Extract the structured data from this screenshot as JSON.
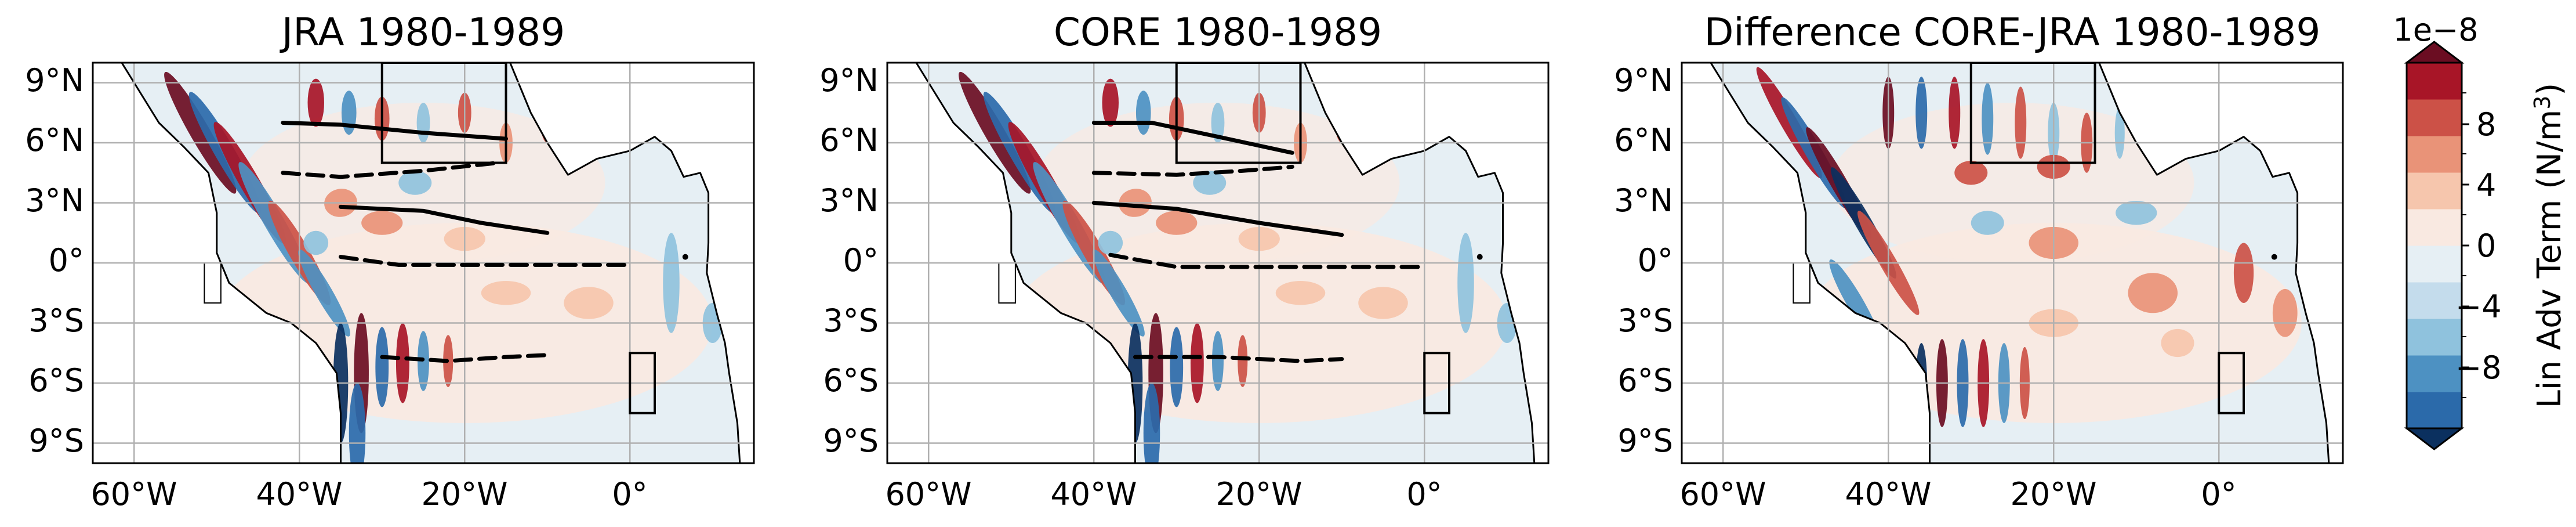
{
  "chart_data": [
    {
      "type": "heatmap",
      "title": "JRA 1980-1989",
      "x_tick_labels": [
        "60°W",
        "40°W",
        "20°W",
        "0°"
      ],
      "x_tick_values": [
        -60,
        -40,
        -20,
        0
      ],
      "y_tick_labels": [
        "9°N",
        "6°N",
        "3°N",
        "0°",
        "3°S",
        "6°S",
        "9°S"
      ],
      "y_tick_values": [
        9,
        6,
        3,
        0,
        -3,
        -6,
        -9
      ],
      "xlim": [
        -65,
        15
      ],
      "ylim": [
        -10,
        10
      ],
      "grid": true,
      "boxes": [
        {
          "lon": [
            -30,
            -15
          ],
          "lat": [
            5,
            10
          ]
        },
        {
          "lon": [
            0,
            3
          ],
          "lat": [
            -7.5,
            -4.5
          ]
        }
      ],
      "contour_lines": [
        {
          "style": "solid",
          "points": [
            [
              -42,
              7
            ],
            [
              -35,
              6.9
            ],
            [
              -25,
              6.5
            ],
            [
              -15,
              6.2
            ]
          ]
        },
        {
          "style": "dashed",
          "points": [
            [
              -42,
              4.5
            ],
            [
              -35,
              4.3
            ],
            [
              -25,
              4.6
            ],
            [
              -16,
              5
            ]
          ]
        },
        {
          "style": "solid",
          "points": [
            [
              -35,
              2.8
            ],
            [
              -25,
              2.6
            ],
            [
              -18,
              2
            ],
            [
              -10,
              1.5
            ]
          ]
        },
        {
          "style": "dashed",
          "points": [
            [
              -35,
              0.3
            ],
            [
              -28,
              -0.1
            ],
            [
              -10,
              -0.1
            ],
            [
              0,
              -0.1
            ]
          ]
        },
        {
          "style": "dashed",
          "points": [
            [
              -30,
              -4.7
            ],
            [
              -22,
              -4.9
            ],
            [
              -15,
              -4.7
            ],
            [
              -10,
              -4.6
            ]
          ]
        }
      ]
    },
    {
      "type": "heatmap",
      "title": "CORE 1980-1989",
      "x_tick_labels": [
        "60°W",
        "40°W",
        "20°W",
        "0°"
      ],
      "x_tick_values": [
        -60,
        -40,
        -20,
        0
      ],
      "y_tick_labels": [
        "9°N",
        "6°N",
        "3°N",
        "0°",
        "3°S",
        "6°S",
        "9°S"
      ],
      "y_tick_values": [
        9,
        6,
        3,
        0,
        -3,
        -6,
        -9
      ],
      "xlim": [
        -65,
        15
      ],
      "ylim": [
        -10,
        10
      ],
      "grid": true,
      "boxes": [
        {
          "lon": [
            -30,
            -15
          ],
          "lat": [
            5,
            10
          ]
        },
        {
          "lon": [
            0,
            3
          ],
          "lat": [
            -7.5,
            -4.5
          ]
        }
      ],
      "contour_lines": [
        {
          "style": "solid",
          "points": [
            [
              -40,
              7
            ],
            [
              -33,
              7
            ],
            [
              -25,
              6.3
            ],
            [
              -16,
              5.5
            ]
          ]
        },
        {
          "style": "dashed",
          "points": [
            [
              -40,
              4.5
            ],
            [
              -30,
              4.4
            ],
            [
              -22,
              4.6
            ],
            [
              -16,
              4.8
            ]
          ]
        },
        {
          "style": "solid",
          "points": [
            [
              -40,
              3
            ],
            [
              -30,
              2.7
            ],
            [
              -20,
              2
            ],
            [
              -10,
              1.4
            ]
          ]
        },
        {
          "style": "dashed",
          "points": [
            [
              -38,
              0.4
            ],
            [
              -30,
              -0.2
            ],
            [
              -15,
              -0.2
            ],
            [
              0,
              -0.2
            ]
          ]
        },
        {
          "style": "dashed",
          "points": [
            [
              -35,
              -4.7
            ],
            [
              -25,
              -4.7
            ],
            [
              -15,
              -4.9
            ],
            [
              -10,
              -4.8
            ]
          ]
        }
      ]
    },
    {
      "type": "heatmap",
      "title": "Difference CORE-JRA 1980-1989",
      "x_tick_labels": [
        "60°W",
        "40°W",
        "20°W",
        "0°"
      ],
      "x_tick_values": [
        -60,
        -40,
        -20,
        0
      ],
      "y_tick_labels": [
        "9°N",
        "6°N",
        "3°N",
        "0°",
        "3°S",
        "6°S",
        "9°S"
      ],
      "y_tick_values": [
        9,
        6,
        3,
        0,
        -3,
        -6,
        -9
      ],
      "xlim": [
        -65,
        15
      ],
      "ylim": [
        -10,
        10
      ],
      "grid": true,
      "boxes": [
        {
          "lon": [
            -30,
            -15
          ],
          "lat": [
            5,
            10
          ]
        },
        {
          "lon": [
            0,
            3
          ],
          "lat": [
            -7.5,
            -4.5
          ]
        }
      ],
      "contour_lines": []
    }
  ],
  "colorbar": {
    "label": "Lin Adv Term (N/m",
    "label_superscript": "3",
    "label_close": ")",
    "scale_label": "1e−8",
    "tick_labels": [
      "8",
      "4",
      "0",
      "−4",
      "−8"
    ],
    "tick_values": [
      8,
      4,
      0,
      -4,
      -8
    ],
    "range": [
      -10,
      10
    ],
    "extend": "both",
    "colors": [
      "#0b305f",
      "#2b6aaa",
      "#4d91c2",
      "#8fc2dd",
      "#c4dcec",
      "#e6eff4",
      "#f9e9e1",
      "#f6c6ad",
      "#e99378",
      "#cc5147",
      "#a81527",
      "#6b0d22"
    ]
  },
  "colors": {
    "land": "#ffffff",
    "coast": "#000000",
    "grid": "#b0b0b0",
    "neutral_positive": "#f9e9e1",
    "neutral_negative": "#e6eff4"
  }
}
